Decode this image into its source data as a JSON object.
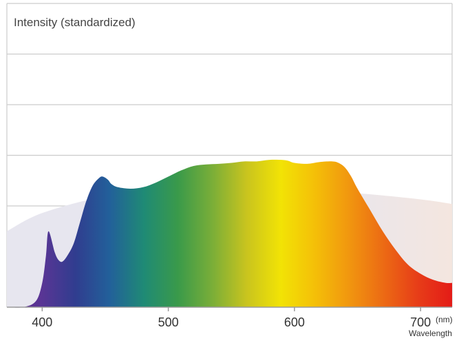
{
  "chart_data": {
    "type": "area",
    "ylabel": "Intensity (standardized)",
    "xlabel": "Wavelength",
    "x_unit": "(nm)",
    "xlim": [
      372,
      725
    ],
    "ylim": [
      0,
      100
    ],
    "x_ticks": [
      400,
      500,
      600,
      700
    ],
    "y_gridlines": [
      16.67,
      33.33,
      50,
      66.67,
      83.33,
      100
    ],
    "grid": true,
    "series": [
      {
        "style": "filled area, light grey-lavender",
        "x": [
          372,
          400,
          450,
          500,
          550,
          600,
          650,
          700,
          725
        ],
        "y": [
          25,
          31,
          36.5,
          38.5,
          39,
          38.6,
          37.5,
          35.5,
          34
        ]
      },
      {
        "style": "filled area, rainbow spectrum gradient",
        "x": [
          372,
          385,
          395,
          400,
          403,
          405,
          410,
          413,
          416,
          420,
          425,
          430,
          435,
          440,
          445,
          448,
          452,
          455,
          460,
          470,
          480,
          490,
          500,
          510,
          520,
          530,
          540,
          550,
          560,
          570,
          580,
          590,
          595,
          600,
          610,
          620,
          630,
          635,
          640,
          645,
          650,
          660,
          670,
          680,
          690,
          700,
          710,
          720,
          725
        ],
        "y": [
          0,
          0,
          2,
          8,
          17,
          25,
          18,
          15.5,
          15,
          17,
          21,
          28,
          35,
          40,
          42.5,
          43,
          42,
          40.5,
          39.5,
          39,
          39.5,
          41,
          43,
          45,
          46.5,
          47,
          47.2,
          47.5,
          48,
          48,
          48.5,
          48.5,
          48.2,
          47.5,
          47.2,
          47.8,
          48,
          47.5,
          46,
          43,
          39,
          32,
          25,
          19,
          14,
          11,
          9,
          8,
          8
        ]
      }
    ],
    "colors": {
      "background_area": "#e7e6ef",
      "background_area_edge": "#f4e6df",
      "gridline": "#cccccc",
      "axis_line": "#9a9a9a",
      "spectrum_stops": [
        "#5d2a8c",
        "#5a3595",
        "#303d8f",
        "#22609a",
        "#1f8a75",
        "#3a9a4a",
        "#7aae38",
        "#c9c41e",
        "#f2e305",
        "#f4bf08",
        "#f1960f",
        "#ec6a14",
        "#e73d18",
        "#e41b17"
      ]
    }
  }
}
